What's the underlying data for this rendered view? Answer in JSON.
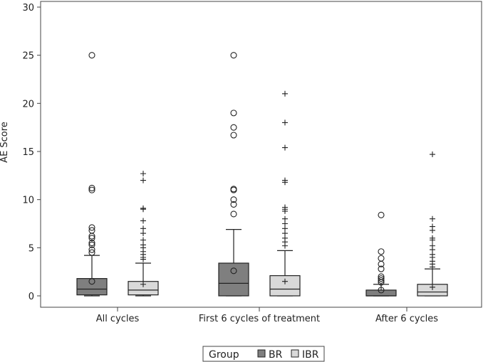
{
  "chart_data": {
    "type": "box",
    "ylabel": "AE Score",
    "xlabel": "",
    "ylim": [
      0,
      30
    ],
    "yticks": [
      0,
      5,
      10,
      15,
      20,
      25,
      30
    ],
    "categories": [
      "All cycles",
      "First 6 cycles of treatment",
      "After 6 cycles"
    ],
    "legend": {
      "title": "Group",
      "position": "bottom",
      "entries": [
        {
          "label": "BR",
          "color": "#7f7f7f",
          "marker": "circle"
        },
        {
          "label": "IBR",
          "color": "#d9d9d9",
          "marker": "plus"
        }
      ]
    },
    "series": [
      {
        "name": "BR",
        "color": "#7f7f7f",
        "outlier_marker": "circle",
        "boxes": [
          {
            "category": "All cycles",
            "min": 0,
            "q1": 0.1,
            "median": 0.7,
            "q3": 1.8,
            "whisker_high": 4.2,
            "mean": 1.5,
            "outliers": [
              4.5,
              4.8,
              5.3,
              5.5,
              6.0,
              6.2,
              6.8,
              7.1,
              11.0,
              11.2,
              25.0
            ]
          },
          {
            "category": "First 6 cycles of treatment",
            "min": 0,
            "q1": 0.0,
            "median": 1.3,
            "q3": 3.4,
            "whisker_high": 6.9,
            "mean": 2.6,
            "outliers": [
              8.5,
              9.5,
              10.0,
              11.0,
              11.1,
              16.7,
              17.5,
              19.0,
              25.0
            ]
          },
          {
            "category": "After 6 cycles",
            "min": 0,
            "q1": 0.0,
            "median": 0.0,
            "q3": 0.6,
            "whisker_high": 1.2,
            "mean": 0.6,
            "outliers": [
              1.4,
              1.6,
              1.8,
              2.0,
              2.8,
              3.3,
              3.9,
              4.6,
              8.4
            ]
          }
        ]
      },
      {
        "name": "IBR",
        "color": "#d9d9d9",
        "outlier_marker": "plus",
        "boxes": [
          {
            "category": "All cycles",
            "min": 0,
            "q1": 0.1,
            "median": 0.6,
            "q3": 1.5,
            "whisker_high": 3.4,
            "mean": 1.2,
            "outliers": [
              3.8,
              4.0,
              4.3,
              4.6,
              5.0,
              5.3,
              5.8,
              6.5,
              7.0,
              7.8,
              9.0,
              9.1,
              12.0,
              12.7
            ]
          },
          {
            "category": "First 6 cycles of treatment",
            "min": 0,
            "q1": 0.0,
            "median": 0.7,
            "q3": 2.1,
            "whisker_high": 4.7,
            "mean": 1.5,
            "outliers": [
              5.2,
              5.6,
              6.0,
              6.5,
              7.0,
              7.5,
              8.0,
              8.8,
              9.0,
              9.2,
              11.8,
              12.0,
              15.4,
              18.0,
              21.0
            ]
          },
          {
            "category": "After 6 cycles",
            "min": 0,
            "q1": 0.0,
            "median": 0.4,
            "q3": 1.2,
            "whisker_high": 2.8,
            "mean": 0.9,
            "outliers": [
              3.0,
              3.3,
              3.6,
              4.0,
              4.3,
              4.8,
              5.2,
              5.8,
              6.0,
              6.8,
              7.2,
              8.0,
              14.7
            ]
          }
        ]
      }
    ]
  }
}
